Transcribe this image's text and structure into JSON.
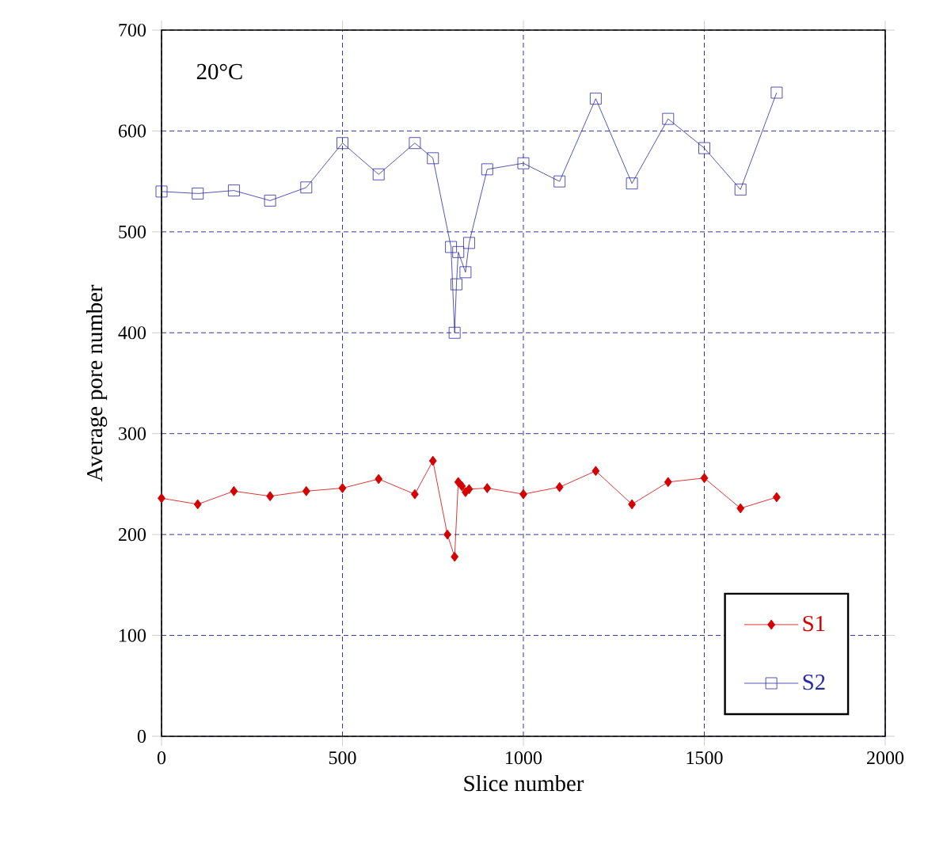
{
  "chart_data": {
    "type": "line",
    "xlabel": "Slice number",
    "ylabel": "Average pore number",
    "annotations": [
      "20°C"
    ],
    "xlim": [
      0,
      2000
    ],
    "ylim": [
      0,
      700
    ],
    "xticks": [
      0,
      500,
      1000,
      1500,
      2000
    ],
    "yticks": [
      0,
      100,
      200,
      300,
      400,
      500,
      600,
      700
    ],
    "grid": true,
    "legend": "bottom right",
    "series": [
      {
        "name": "S1",
        "color": "#d40000",
        "marker": "diamond",
        "x": [
          0,
          100,
          200,
          300,
          400,
          500,
          600,
          700,
          750,
          790,
          810,
          820,
          830,
          840,
          850,
          900,
          1000,
          1100,
          1200,
          1300,
          1400,
          1500,
          1600,
          1700
        ],
        "values": [
          236,
          230,
          243,
          238,
          243,
          246,
          255,
          240,
          273,
          200,
          178,
          252,
          248,
          242,
          245,
          246,
          240,
          247,
          263,
          230,
          252,
          256,
          226,
          237
        ]
      },
      {
        "name": "S2",
        "color": "#2a2aa0",
        "marker": "square",
        "x": [
          0,
          100,
          200,
          300,
          400,
          500,
          600,
          700,
          750,
          800,
          810,
          815,
          820,
          840,
          850,
          900,
          1000,
          1100,
          1200,
          1300,
          1400,
          1500,
          1600,
          1700
        ],
        "values": [
          540,
          538,
          541,
          531,
          544,
          588,
          557,
          588,
          573,
          485,
          400,
          448,
          480,
          460,
          489,
          562,
          568,
          550,
          632,
          548,
          612,
          583,
          542,
          638
        ]
      }
    ]
  }
}
